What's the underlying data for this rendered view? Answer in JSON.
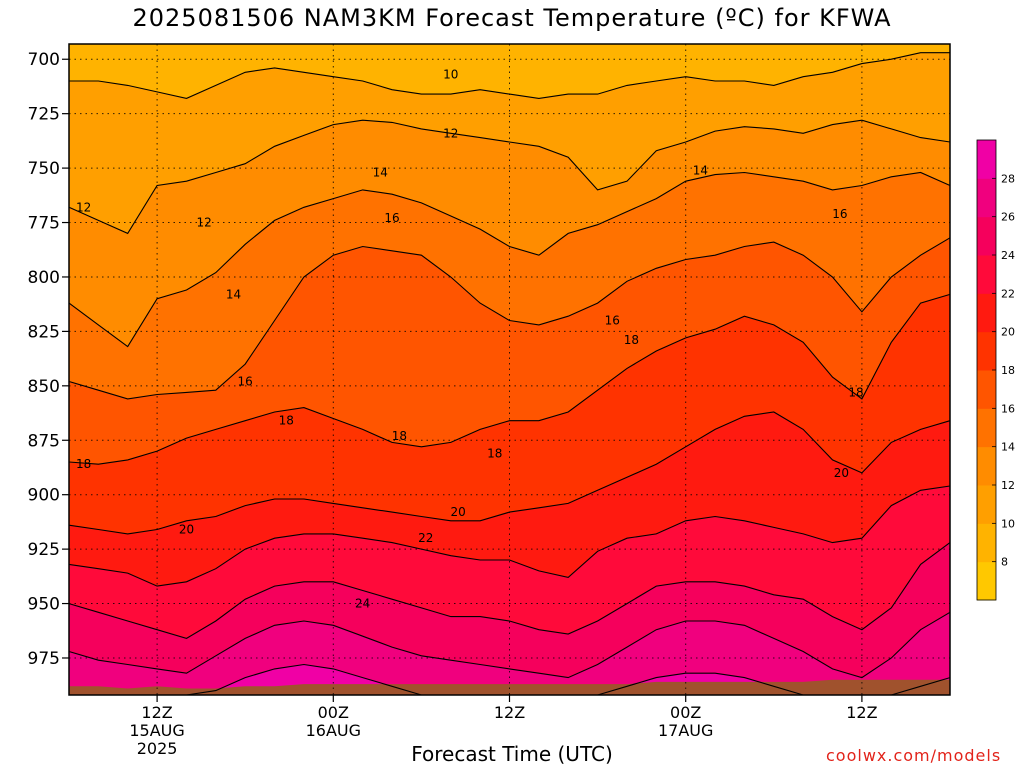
{
  "header": {
    "title": "2025081506 NAM3KM Forecast Temperature (ºC) for KFWA"
  },
  "footer": {
    "xlabel": "Forecast Time (UTC)",
    "credit": "coolwx.com/models"
  },
  "chart_data": {
    "type": "heatmap",
    "title": "2025081506 NAM3KM Forecast Temperature (ºC) for KFWA",
    "xlabel": "Forecast Time (UTC)",
    "ylabel": "",
    "y_ticks": [
      700,
      725,
      750,
      775,
      800,
      825,
      850,
      875,
      900,
      925,
      950,
      975
    ],
    "ylim": [
      992,
      693
    ],
    "x_ticks": [
      {
        "hour": 6,
        "lines": [
          "12Z",
          "15AUG",
          "2025"
        ]
      },
      {
        "hour": 18,
        "lines": [
          "00Z",
          "16AUG"
        ]
      },
      {
        "hour": 30,
        "lines": [
          "12Z"
        ]
      },
      {
        "hour": 42,
        "lines": [
          "00Z",
          "17AUG"
        ]
      },
      {
        "hour": 54,
        "lines": [
          "12Z"
        ]
      }
    ],
    "xlim": [
      0,
      60
    ],
    "grid": true,
    "colorbar": {
      "labels": [
        8,
        10,
        12,
        14,
        16,
        18,
        20,
        22,
        24,
        26,
        28
      ],
      "levels": [
        6,
        8,
        10,
        12,
        14,
        16,
        18,
        20,
        22,
        24,
        26,
        28,
        30
      ],
      "colors": [
        "#ffc800",
        "#ffb300",
        "#ff9f00",
        "#ff8c00",
        "#ff7200",
        "#ff5500",
        "#ff3300",
        "#ff1a10",
        "#ff0a3a",
        "#f5005c",
        "#f0007e",
        "#f000a5"
      ]
    },
    "ground_color": "#a0522d",
    "x_hours": [
      0,
      2,
      4,
      6,
      8,
      10,
      12,
      14,
      16,
      18,
      20,
      22,
      24,
      26,
      28,
      30,
      32,
      34,
      36,
      38,
      40,
      42,
      44,
      46,
      48,
      50,
      52,
      54,
      56,
      58,
      60
    ],
    "contours": [
      {
        "level": 10,
        "p": [
          710,
          710,
          712,
          715,
          718,
          712,
          706,
          704,
          706,
          708,
          710,
          714,
          716,
          716,
          714,
          716,
          718,
          716,
          716,
          712,
          710,
          708,
          710,
          710,
          712,
          708,
          706,
          702,
          700,
          697,
          697
        ]
      },
      {
        "level": 12,
        "p": [
          768,
          774,
          780,
          758,
          756,
          752,
          748,
          740,
          735,
          730,
          728,
          729,
          732,
          734,
          736,
          738,
          740,
          745,
          760,
          756,
          742,
          738,
          733,
          731,
          732,
          734,
          730,
          728,
          732,
          736,
          738
        ]
      },
      {
        "level": 14,
        "p": [
          812,
          822,
          832,
          810,
          806,
          798,
          785,
          774,
          768,
          764,
          760,
          762,
          766,
          772,
          778,
          786,
          790,
          780,
          776,
          770,
          764,
          756,
          753,
          752,
          754,
          756,
          760,
          758,
          754,
          752,
          758
        ]
      },
      {
        "level": 16,
        "p": [
          848,
          852,
          856,
          854,
          853,
          852,
          840,
          820,
          800,
          790,
          786,
          788,
          790,
          800,
          812,
          820,
          822,
          818,
          812,
          802,
          796,
          792,
          790,
          786,
          784,
          790,
          800,
          816,
          800,
          790,
          782
        ]
      },
      {
        "level": 18,
        "p": [
          885,
          886,
          884,
          880,
          874,
          870,
          866,
          862,
          860,
          865,
          870,
          876,
          878,
          876,
          870,
          866,
          866,
          862,
          852,
          842,
          834,
          828,
          824,
          818,
          822,
          830,
          846,
          856,
          830,
          812,
          808
        ]
      },
      {
        "level": 20,
        "p": [
          914,
          916,
          918,
          916,
          912,
          910,
          905,
          902,
          902,
          904,
          906,
          908,
          910,
          912,
          912,
          908,
          906,
          904,
          898,
          892,
          886,
          878,
          870,
          864,
          862,
          870,
          884,
          890,
          876,
          870,
          866
        ]
      },
      {
        "level": 22,
        "p": [
          932,
          934,
          936,
          942,
          940,
          934,
          925,
          920,
          918,
          918,
          920,
          922,
          925,
          928,
          930,
          930,
          935,
          938,
          926,
          920,
          918,
          912,
          910,
          912,
          915,
          918,
          922,
          920,
          905,
          898,
          896
        ]
      },
      {
        "level": 24,
        "p": [
          950,
          954,
          958,
          962,
          966,
          958,
          948,
          942,
          940,
          940,
          944,
          948,
          952,
          956,
          956,
          958,
          962,
          964,
          958,
          950,
          942,
          940,
          940,
          942,
          946,
          948,
          956,
          962,
          952,
          932,
          922
        ]
      },
      {
        "level": 26,
        "p": [
          972,
          976,
          978,
          980,
          982,
          974,
          966,
          960,
          958,
          960,
          965,
          970,
          974,
          976,
          978,
          980,
          982,
          984,
          978,
          970,
          962,
          958,
          958,
          960,
          966,
          972,
          980,
          984,
          975,
          962,
          954
        ]
      },
      {
        "level": 28,
        "p": [
          992,
          992,
          992,
          992,
          992,
          990,
          984,
          980,
          978,
          980,
          984,
          988,
          992,
          992,
          992,
          992,
          992,
          992,
          992,
          988,
          984,
          982,
          982,
          984,
          988,
          992,
          992,
          992,
          992,
          988,
          984
        ]
      }
    ],
    "ground_p": [
      988,
      988,
      989,
      988,
      989,
      989,
      988,
      988,
      987,
      987,
      987,
      987,
      987,
      987,
      987,
      987,
      987,
      987,
      987,
      987,
      986,
      986,
      986,
      986,
      986,
      986,
      985,
      985,
      985,
      985,
      985
    ],
    "contour_labels": [
      {
        "text": "10",
        "hour": 26.0,
        "p": 707
      },
      {
        "text": "12",
        "hour": 26.0,
        "p": 734
      },
      {
        "text": "12",
        "hour": 1.0,
        "p": 768
      },
      {
        "text": "12",
        "hour": 9.2,
        "p": 775
      },
      {
        "text": "14",
        "hour": 21.2,
        "p": 752
      },
      {
        "text": "14",
        "hour": 43.0,
        "p": 751
      },
      {
        "text": "14",
        "hour": 11.2,
        "p": 808
      },
      {
        "text": "16",
        "hour": 22.0,
        "p": 773
      },
      {
        "text": "16",
        "hour": 52.5,
        "p": 771
      },
      {
        "text": "16",
        "hour": 37.0,
        "p": 820
      },
      {
        "text": "16",
        "hour": 12.0,
        "p": 848
      },
      {
        "text": "18",
        "hour": 38.3,
        "p": 829
      },
      {
        "text": "18",
        "hour": 14.8,
        "p": 866
      },
      {
        "text": "18",
        "hour": 22.5,
        "p": 873
      },
      {
        "text": "18",
        "hour": 29.0,
        "p": 881
      },
      {
        "text": "18",
        "hour": 1.0,
        "p": 886
      },
      {
        "text": "18",
        "hour": 53.6,
        "p": 853
      },
      {
        "text": "20",
        "hour": 8.0,
        "p": 916
      },
      {
        "text": "20",
        "hour": 26.5,
        "p": 908
      },
      {
        "text": "20",
        "hour": 52.6,
        "p": 890
      },
      {
        "text": "22",
        "hour": 24.3,
        "p": 920
      },
      {
        "text": "24",
        "hour": 20.0,
        "p": 950
      }
    ]
  }
}
